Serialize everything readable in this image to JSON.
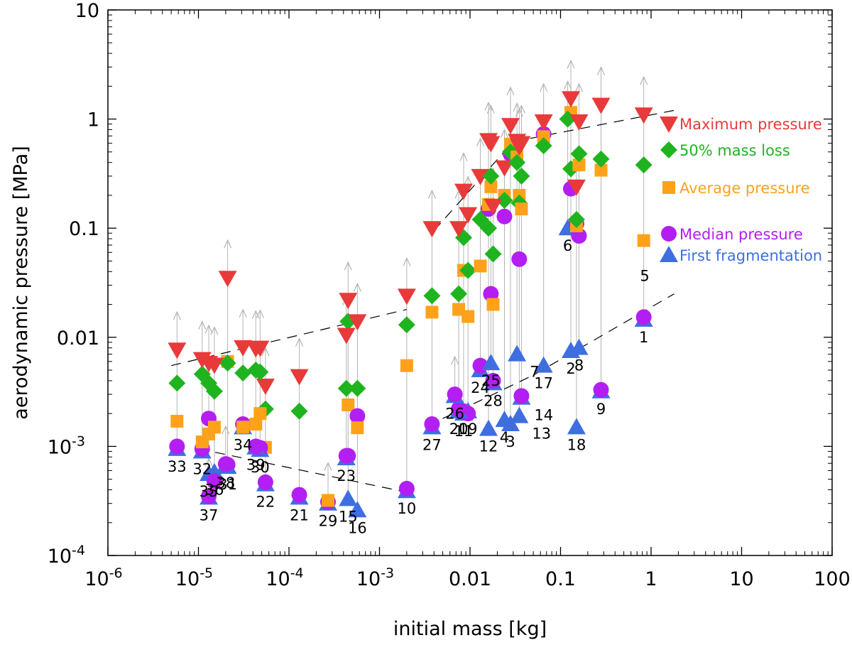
{
  "chart_data": {
    "type": "scatter",
    "title": "",
    "xlabel": "initial mass [kg]",
    "ylabel": "aerodynamic pressure [MPa]",
    "xscale": "log",
    "yscale": "log",
    "xlim": [
      1e-06,
      100
    ],
    "ylim": [
      0.0001,
      10
    ],
    "x_ticks": [
      {
        "value": 1e-06,
        "base": "10",
        "exp": "-6"
      },
      {
        "value": 1e-05,
        "base": "10",
        "exp": "-5"
      },
      {
        "value": 0.0001,
        "base": "10",
        "exp": "-4"
      },
      {
        "value": 0.001,
        "base": "10",
        "exp": "-3"
      },
      {
        "value": 0.01,
        "base": "0.01",
        "exp": ""
      },
      {
        "value": 0.1,
        "base": "0.1",
        "exp": ""
      },
      {
        "value": 1,
        "base": "1",
        "exp": ""
      },
      {
        "value": 10,
        "base": "10",
        "exp": ""
      },
      {
        "value": 100,
        "base": "100",
        "exp": ""
      }
    ],
    "y_ticks": [
      {
        "value": 0.0001,
        "base": "10",
        "exp": "-4"
      },
      {
        "value": 0.001,
        "base": "10",
        "exp": "-3"
      },
      {
        "value": 0.01,
        "base": "0.01",
        "exp": ""
      },
      {
        "value": 0.1,
        "base": "0.1",
        "exp": ""
      },
      {
        "value": 1,
        "base": "1",
        "exp": ""
      },
      {
        "value": 10,
        "base": "10",
        "exp": ""
      }
    ],
    "legend_position": "right",
    "series_styles": {
      "max": {
        "name": "Maximum pressure",
        "color": "#e83a3a",
        "marker": "triangle-down"
      },
      "half": {
        "name": "50% mass loss",
        "color": "#1fb41f",
        "marker": "diamond"
      },
      "avg": {
        "name": "Average pressure",
        "color": "#ffa21a",
        "marker": "square"
      },
      "med": {
        "name": "Median pressure",
        "color": "#b31ef2",
        "marker": "circle"
      },
      "first": {
        "name": "First fragmentation",
        "color": "#3e6ee0",
        "marker": "triangle-up"
      }
    },
    "arrow_color": "#b4b4b4",
    "fit_lines": [
      {
        "name": "fit-max-low",
        "points": [
          [
            5e-06,
            0.0055
          ],
          [
            0.002,
            0.018
          ]
        ]
      },
      {
        "name": "fit-max-high",
        "points": [
          [
            0.004,
            0.095
          ],
          [
            0.03,
            0.62
          ],
          [
            1.8,
            1.2
          ]
        ]
      },
      {
        "name": "fit-first-low",
        "points": [
          [
            1e-05,
            0.00095
          ],
          [
            0.002,
            0.00038
          ]
        ]
      },
      {
        "name": "fit-first-high",
        "points": [
          [
            0.005,
            0.0018
          ],
          [
            0.05,
            0.0045
          ],
          [
            1.8,
            0.025
          ]
        ]
      }
    ],
    "meteoroids": [
      {
        "id": "1",
        "m": 0.83,
        "max": 1.1,
        "half": 0.38,
        "avg": 0.077,
        "med": 0.0153,
        "first": 0.0145,
        "label_dir": "below"
      },
      {
        "id": "2",
        "m": 0.13,
        "max": 1.55,
        "half": 0.35,
        "avg": 1.15,
        "med": 0.23,
        "first": 0.0075,
        "label_dir": "below"
      },
      {
        "id": "3",
        "m": 0.028,
        "max": 0.88,
        "half": 0.5,
        "avg": 0.59,
        "med": 0.48,
        "first": 0.0016,
        "label_dir": "below"
      },
      {
        "id": "4",
        "m": 0.024,
        "max": 0.36,
        "half": 0.18,
        "avg": 0.2,
        "med": 0.128,
        "first": 0.00175,
        "label_dir": "below"
      },
      {
        "id": "5",
        "m": 0.85,
        "max": null,
        "half": null,
        "avg": null,
        "med": null,
        "first": null,
        "label_dir": "below"
      },
      {
        "id": "6",
        "m": 0.12,
        "max": null,
        "half": 1.0,
        "avg": null,
        "med": null,
        "first": 0.1,
        "label_dir": "below"
      },
      {
        "id": "7",
        "m": 0.033,
        "max": 0.63,
        "half": 0.4,
        "avg": 0.45,
        "med": null,
        "first": 0.007,
        "label_dir": "right"
      },
      {
        "id": "8",
        "m": 0.16,
        "max": 0.95,
        "half": 0.48,
        "avg": 0.38,
        "med": 0.085,
        "first": 0.008,
        "label_dir": "below"
      },
      {
        "id": "9",
        "m": 0.28,
        "max": 1.35,
        "half": 0.43,
        "avg": 0.34,
        "med": 0.0033,
        "first": 0.0032,
        "label_dir": "below"
      },
      {
        "id": "10",
        "m": 0.002,
        "max": 0.024,
        "half": 0.013,
        "avg": 0.0055,
        "med": 0.00041,
        "first": 0.00039,
        "label_dir": "below"
      },
      {
        "id": "11",
        "m": 0.0085,
        "max": 0.22,
        "half": 0.082,
        "avg": 0.041,
        "med": 0.0021,
        "first": 0.002,
        "label_dir": "below"
      },
      {
        "id": "12",
        "m": 0.016,
        "max": 0.64,
        "half": 0.1,
        "avg": 0.165,
        "med": 0.15,
        "first": 0.00145,
        "label_dir": "below"
      },
      {
        "id": "13",
        "m": 0.035,
        "max": 0.56,
        "half": 0.17,
        "avg": 0.2,
        "med": 0.052,
        "first": 0.0019,
        "label_dir": "right"
      },
      {
        "id": "14",
        "m": 0.037,
        "max": 0.6,
        "half": 0.3,
        "avg": 0.15,
        "med": 0.0029,
        "first": 0.0028,
        "label_dir": "right"
      },
      {
        "id": "15",
        "m": 0.00045,
        "max": 0.022,
        "half": 0.014,
        "avg": 0.0024,
        "med": 0.00082,
        "first": 0.00033,
        "label_dir": "below"
      },
      {
        "id": "16",
        "m": 0.00057,
        "max": 0.014,
        "half": 0.0034,
        "avg": 0.00148,
        "med": 0.0019,
        "first": 0.00026,
        "label_dir": "below"
      },
      {
        "id": "17",
        "m": 0.065,
        "max": 0.95,
        "half": 0.57,
        "avg": 0.69,
        "med": 0.73,
        "first": 0.0055,
        "label_dir": "below"
      },
      {
        "id": "18",
        "m": 0.15,
        "max": 0.24,
        "half": 0.12,
        "avg": 0.105,
        "med": 0.11,
        "first": 0.0015,
        "label_dir": "below"
      },
      {
        "id": "19",
        "m": 0.0095,
        "max": 0.134,
        "half": 0.041,
        "avg": 0.0155,
        "med": 0.002,
        "first": 0.0021,
        "label_dir": "below"
      },
      {
        "id": "20",
        "m": 0.0075,
        "max": 0.1,
        "half": 0.025,
        "avg": 0.018,
        "med": 0.0022,
        "first": 0.0021,
        "label_dir": "below"
      },
      {
        "id": "21",
        "m": 0.00013,
        "max": 0.0044,
        "half": 0.0021,
        "avg": null,
        "med": 0.00036,
        "first": 0.00034,
        "label_dir": "below"
      },
      {
        "id": "22",
        "m": 5.5e-05,
        "max": 0.0036,
        "half": 0.0022,
        "avg": 0.00098,
        "med": 0.00047,
        "first": 0.00045,
        "label_dir": "below"
      },
      {
        "id": "23",
        "m": 0.00043,
        "max": 0.0105,
        "half": 0.0034,
        "avg": null,
        "med": 0.00082,
        "first": 0.00078,
        "label_dir": "below"
      },
      {
        "id": "24",
        "m": 0.013,
        "max": 0.3,
        "half": 0.12,
        "avg": 0.045,
        "med": 0.0055,
        "first": 0.005,
        "label_dir": "below"
      },
      {
        "id": "25",
        "m": 0.017,
        "max": 0.6,
        "half": 0.3,
        "avg": 0.24,
        "med": 0.025,
        "first": 0.0058,
        "label_dir": "below"
      },
      {
        "id": "26",
        "m": 0.0068,
        "max": null,
        "half": null,
        "avg": null,
        "med": 0.003,
        "first": 0.0029,
        "label_dir": "below"
      },
      {
        "id": "27",
        "m": 0.0038,
        "max": 0.1,
        "half": 0.024,
        "avg": 0.017,
        "med": 0.0016,
        "first": 0.0015,
        "label_dir": "below"
      },
      {
        "id": "28",
        "m": 0.018,
        "max": 0.16,
        "half": 0.058,
        "avg": 0.02,
        "med": 0.004,
        "first": 0.0038,
        "label_dir": "below"
      },
      {
        "id": "29",
        "m": 0.00027,
        "max": null,
        "half": null,
        "avg": 0.00032,
        "med": 0.00031,
        "first": 0.0003,
        "label_dir": "below"
      },
      {
        "id": "30",
        "m": 4.8e-05,
        "max": 0.008,
        "half": 0.0048,
        "avg": 0.002,
        "med": 0.00097,
        "first": 0.00093,
        "label_dir": "below"
      },
      {
        "id": "31",
        "m": 2.1e-05,
        "max": 0.035,
        "half": 0.0058,
        "avg": 0.006,
        "med": 0.00068,
        "first": 0.00065,
        "label_dir": "below"
      },
      {
        "id": "32",
        "m": 1.1e-05,
        "max": 0.0063,
        "half": 0.0046,
        "avg": 0.0011,
        "med": 0.00095,
        "first": 0.0009,
        "label_dir": "below"
      },
      {
        "id": "33",
        "m": 5.8e-06,
        "max": 0.0077,
        "half": 0.0038,
        "avg": 0.0017,
        "med": 0.001,
        "first": 0.00095,
        "label_dir": "below"
      },
      {
        "id": "34",
        "m": 3.1e-05,
        "max": 0.0081,
        "half": 0.0047,
        "avg": 0.0015,
        "med": 0.0016,
        "first": 0.0015,
        "label_dir": "below"
      },
      {
        "id": "35",
        "m": 1.3e-05,
        "max": 0.0058,
        "half": 0.0038,
        "avg": 0.0013,
        "med": 0.0018,
        "first": 0.00056,
        "label_dir": "below"
      },
      {
        "id": "36",
        "m": 1.5e-05,
        "max": 0.0056,
        "half": 0.0032,
        "avg": 0.0015,
        "med": 0.00048,
        "first": 0.00058,
        "label_dir": "below"
      },
      {
        "id": "37",
        "m": 1.3e-05,
        "max": null,
        "half": null,
        "avg": null,
        "med": 0.00035,
        "first": 0.00034,
        "label_dir": "below"
      },
      {
        "id": "38",
        "m": 2e-05,
        "max": null,
        "half": null,
        "avg": null,
        "med": 0.00069,
        "first": 0.00067,
        "label_dir": "below"
      },
      {
        "id": "39",
        "m": 4.3e-05,
        "max": 0.0079,
        "half": 0.005,
        "avg": 0.0016,
        "med": 0.001,
        "first": 0.00098,
        "label_dir": "below"
      }
    ]
  }
}
